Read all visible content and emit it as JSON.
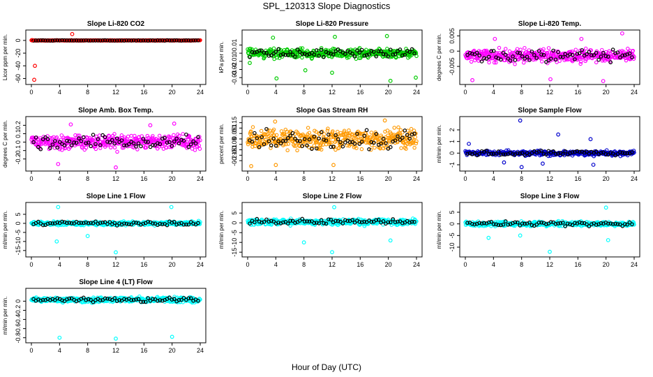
{
  "figure": {
    "title": "SPL_120313  Slope Diagnostics",
    "xlabel": "Hour of Day (UTC)"
  },
  "chart_data": [
    {
      "type": "scatter",
      "title": "Slope Li-820 CO2",
      "ylabel": "Licor ppm per min.",
      "color": "#ff0000",
      "xlim": [
        0,
        24
      ],
      "ylim": [
        -65,
        12
      ],
      "xticks": [
        0,
        4,
        8,
        12,
        16,
        20,
        24
      ],
      "yticks": [
        -60,
        -40,
        -20,
        0
      ],
      "base": 0,
      "spread": 0.6,
      "outliers": [
        [
          0.4,
          -62
        ],
        [
          0.5,
          -40
        ],
        [
          5.8,
          10
        ],
        [
          0.1,
          0.5
        ]
      ]
    },
    {
      "type": "scatter",
      "title": "Slope Li-820 Pressure",
      "ylabel": "kPa per min.",
      "color": "#00cc00",
      "xlim": [
        0,
        24
      ],
      "ylim": [
        -0.035,
        0.025
      ],
      "xticks": [
        0,
        4,
        8,
        12,
        16,
        20,
        24
      ],
      "yticks": [
        -0.03,
        -0.02,
        -0.01,
        0.0,
        0.01
      ],
      "base": 0.0,
      "spread": 0.008,
      "outliers": [
        [
          0.3,
          -0.012
        ],
        [
          4.1,
          -0.031
        ],
        [
          8.2,
          -0.021
        ],
        [
          12.0,
          -0.024
        ],
        [
          20.3,
          -0.034
        ],
        [
          23.9,
          -0.03
        ],
        [
          3.6,
          0.019
        ],
        [
          12.4,
          0.02
        ],
        [
          19.8,
          0.021
        ]
      ]
    },
    {
      "type": "scatter",
      "title": "Slope Li-820 Temp.",
      "ylabel": "degrees C per min.",
      "color": "#ff00ff",
      "xlim": [
        0,
        24
      ],
      "ylim": [
        -0.01,
        0.006
      ],
      "xticks": [
        0,
        4,
        8,
        12,
        16,
        20,
        24
      ],
      "yticks": [
        -0.005,
        0.0,
        0.005
      ],
      "base": -0.0015,
      "spread": 0.003,
      "outliers": [
        [
          1.0,
          -0.0095
        ],
        [
          12.1,
          -0.0092
        ],
        [
          19.6,
          -0.0098
        ],
        [
          4.2,
          0.004
        ],
        [
          16.5,
          0.004
        ],
        [
          22.3,
          0.0058
        ]
      ]
    },
    {
      "type": "scatter",
      "title": "Slope Amb. Box Temp.",
      "ylabel": "degrees C per min.",
      "color": "#ff00ff",
      "xlim": [
        0,
        24
      ],
      "ylim": [
        -0.31,
        0.27
      ],
      "xticks": [
        0,
        4,
        8,
        12,
        16,
        20,
        24
      ],
      "yticks": [
        -0.2,
        -0.1,
        0.0,
        0.1,
        0.2
      ],
      "base": 0.0,
      "spread": 0.12,
      "outliers": [
        [
          12.0,
          -0.3
        ],
        [
          3.8,
          -0.26
        ],
        [
          5.6,
          0.21
        ],
        [
          16.9,
          0.2
        ],
        [
          20.3,
          0.22
        ]
      ]
    },
    {
      "type": "scatter",
      "title": "Slope Gas Stream RH",
      "ylabel": "percent per min.",
      "color": "#ff9900",
      "xlim": [
        0,
        24
      ],
      "ylim": [
        -0.27,
        0.18
      ],
      "xticks": [
        0,
        4,
        8,
        12,
        16,
        20,
        24
      ],
      "yticks": [
        -0.2,
        -0.15,
        -0.1,
        -0.05,
        0.0,
        0.05,
        0.1,
        0.15
      ],
      "base": 0.0,
      "spread": 0.13,
      "outliers": [
        [
          0.5,
          -0.25
        ],
        [
          4.0,
          -0.24
        ],
        [
          12.2,
          -0.24
        ],
        [
          19.5,
          0.17
        ],
        [
          3.9,
          0.16
        ]
      ]
    },
    {
      "type": "scatter",
      "title": "Slope Sample Flow",
      "ylabel": "ml/min per min.",
      "color": "#0000cc",
      "xlim": [
        0,
        24
      ],
      "ylim": [
        -1.3,
        2.9
      ],
      "xticks": [
        0,
        4,
        8,
        12,
        16,
        20,
        24
      ],
      "yticks": [
        -1,
        0,
        1,
        2
      ],
      "base": 0.0,
      "spread": 0.3,
      "outliers": [
        [
          7.8,
          2.8
        ],
        [
          8.0,
          -1.2
        ],
        [
          13.2,
          1.6
        ],
        [
          17.8,
          1.2
        ],
        [
          18.2,
          -1.0
        ],
        [
          0.5,
          0.8
        ],
        [
          5.5,
          -0.8
        ],
        [
          11.0,
          -0.9
        ]
      ]
    },
    {
      "type": "scatter",
      "title": "Slope Line 1 Flow",
      "ylabel": "ml/min per min.",
      "color": "#00ffff",
      "xlim": [
        0,
        24
      ],
      "ylim": [
        -17,
        10
      ],
      "xticks": [
        0,
        4,
        8,
        12,
        16,
        20,
        24
      ],
      "yticks": [
        -15,
        -10,
        -5,
        0,
        5
      ],
      "base": 0.0,
      "spread": 1.5,
      "outliers": [
        [
          3.8,
          9
        ],
        [
          3.6,
          -10
        ],
        [
          12.0,
          -16
        ],
        [
          19.9,
          9
        ],
        [
          8.0,
          -7
        ]
      ]
    },
    {
      "type": "scatter",
      "title": "Slope Line 2 Flow",
      "ylabel": "ml/min per min.",
      "color": "#00ffff",
      "xlim": [
        0,
        24
      ],
      "ylim": [
        -16,
        9
      ],
      "xticks": [
        0,
        4,
        8,
        12,
        16,
        20,
        24
      ],
      "yticks": [
        -15,
        -10,
        -5,
        0,
        5
      ],
      "base": 0.5,
      "spread": 2.2,
      "outliers": [
        [
          8.0,
          -10
        ],
        [
          12.0,
          -15
        ],
        [
          12.3,
          8
        ],
        [
          20.3,
          -9
        ]
      ]
    },
    {
      "type": "scatter",
      "title": "Slope Line 3 Flow",
      "ylabel": "ml/min per min.",
      "color": "#00ffff",
      "xlim": [
        0,
        24
      ],
      "ylim": [
        -13,
        8
      ],
      "xticks": [
        0,
        4,
        8,
        12,
        16,
        20,
        24
      ],
      "yticks": [
        -10,
        -5,
        0,
        5
      ],
      "base": 0.0,
      "spread": 1.4,
      "outliers": [
        [
          3.3,
          -6
        ],
        [
          7.8,
          -5
        ],
        [
          12.0,
          -12
        ],
        [
          20.3,
          -7
        ],
        [
          20.0,
          7
        ]
      ]
    },
    {
      "type": "scatter",
      "title": "Slope Line 4 (LT) Flow",
      "ylabel": "ml/min per min.",
      "color": "#00ffff",
      "xlim": [
        0,
        24
      ],
      "ylim": [
        -0.85,
        0.22
      ],
      "xticks": [
        0,
        4,
        8,
        12,
        16,
        20,
        24
      ],
      "yticks": [
        -0.8,
        -0.6,
        -0.4,
        -0.2,
        0.0
      ],
      "base": 0.03,
      "spread": 0.08,
      "outliers": [
        [
          4.0,
          -0.8
        ],
        [
          12.0,
          -0.82
        ],
        [
          20.0,
          -0.78
        ]
      ]
    }
  ]
}
